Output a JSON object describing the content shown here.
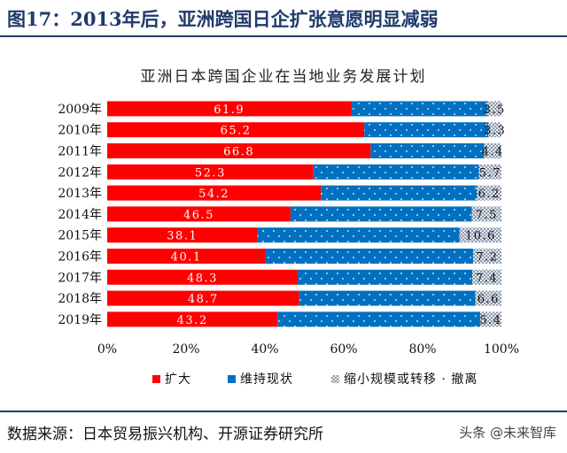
{
  "figure": {
    "title": "图17：2013年后，亚洲跨国日企扩张意愿明显减弱",
    "source": "数据来源：日本贸易振兴机构、开源证券研究所",
    "watermark": "头条 @未来智库"
  },
  "chart_data": {
    "type": "bar",
    "orientation": "horizontal",
    "stacked": true,
    "percent_stacked": true,
    "title": "亚洲日本跨国企业在当地业务发展计划",
    "xlabel": "",
    "ylabel": "",
    "xlim": [
      0,
      100
    ],
    "x_ticks": [
      "0%",
      "20%",
      "40%",
      "60%",
      "80%",
      "100%"
    ],
    "categories": [
      "2009年",
      "2010年",
      "2011年",
      "2012年",
      "2013年",
      "2014年",
      "2015年",
      "2016年",
      "2017年",
      "2018年",
      "2019年"
    ],
    "series": [
      {
        "name": "扩大",
        "color": "#ff0000",
        "values": [
          61.9,
          65.2,
          66.8,
          52.3,
          54.2,
          46.5,
          38.1,
          40.1,
          48.3,
          48.7,
          43.2
        ]
      },
      {
        "name": "维持现状",
        "color": "#0070c0",
        "values": [
          34.6,
          31.5,
          28.8,
          42.0,
          39.6,
          46.0,
          51.3,
          52.7,
          44.3,
          44.7,
          51.4
        ]
      },
      {
        "name": "缩小规模或转移 · 撤离",
        "color": "#c8d3e0",
        "values": [
          3.5,
          3.3,
          4.4,
          5.7,
          6.2,
          7.5,
          10.6,
          7.2,
          7.4,
          6.6,
          5.4
        ]
      }
    ],
    "data_labels": {
      "series_0": [
        "61.9",
        "65.2",
        "66.8",
        "52.3",
        "54.2",
        "46.5",
        "38.1",
        "40.1",
        "48.3",
        "48.7",
        "43.2"
      ],
      "series_2": [
        "3.5",
        "3.3",
        "4.4",
        "5.7",
        "6.2",
        "7.5",
        "10.6",
        "7.2",
        "7.4",
        "6.6",
        "5.4"
      ]
    },
    "legend_position": "bottom",
    "grid": false
  }
}
